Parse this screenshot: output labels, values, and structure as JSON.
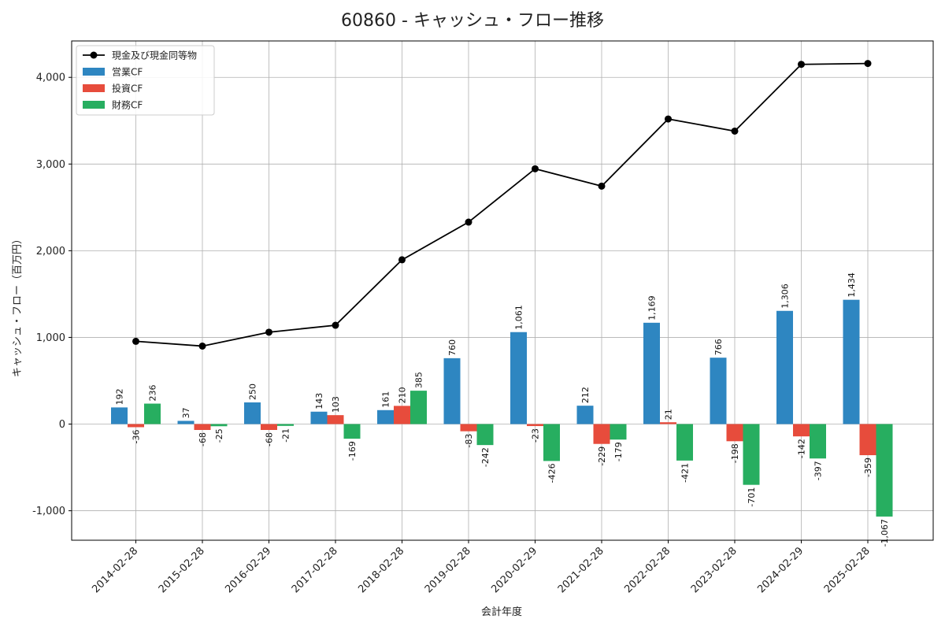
{
  "chart_data": {
    "type": "bar",
    "title": "60860 - キャッシュ・フロー推移",
    "xlabel": "会計年度",
    "ylabel": "キャッシュ・フロー（百万円）",
    "ylim": [
      -1340,
      4420
    ],
    "yticks": [
      -1000,
      0,
      1000,
      2000,
      3000,
      4000
    ],
    "ytick_labels": [
      "-1,000",
      "0",
      "1,000",
      "2,000",
      "3,000",
      "4,000"
    ],
    "grid": true,
    "legend_position": "top-left",
    "categories": [
      "2014-02-28",
      "2015-02-28",
      "2016-02-29",
      "2017-02-28",
      "2018-02-28",
      "2019-02-28",
      "2020-02-29",
      "2021-02-28",
      "2022-02-28",
      "2023-02-28",
      "2024-02-29",
      "2025-02-28"
    ],
    "series": [
      {
        "name": "営業CF",
        "kind": "bar",
        "color": "#2e86c1",
        "values": [
          192,
          37,
          250,
          143,
          161,
          760,
          1061,
          212,
          1169,
          766,
          1306,
          1434
        ],
        "labels": [
          "192",
          "37",
          "250",
          "143",
          "161",
          "760",
          "1,061",
          "212",
          "1,169",
          "766",
          "1,306",
          "1,434"
        ]
      },
      {
        "name": "投資CF",
        "kind": "bar",
        "color": "#e74c3c",
        "values": [
          -36,
          -68,
          -68,
          103,
          210,
          -83,
          -23,
          -229,
          21,
          -198,
          -142,
          -359
        ],
        "labels": [
          "-36",
          "-68",
          "-68",
          "103",
          "210",
          "-83",
          "-23",
          "-229",
          "21",
          "-198",
          "-142",
          "-359"
        ]
      },
      {
        "name": "財務CF",
        "kind": "bar",
        "color": "#27ae60",
        "values": [
          236,
          -25,
          -21,
          -169,
          385,
          -242,
          -426,
          -179,
          -421,
          -701,
          -397,
          -1067
        ],
        "labels": [
          "236",
          "-25",
          "-21",
          "-169",
          "385",
          "-242",
          "-426",
          "-179",
          "-421",
          "-701",
          "-397",
          "-1,067"
        ]
      },
      {
        "name": "現金及び現金同等物",
        "kind": "line",
        "color": "#000000",
        "values": [
          955,
          900,
          1060,
          1140,
          1895,
          2330,
          2945,
          2745,
          3520,
          3380,
          4150,
          4160
        ]
      }
    ]
  }
}
